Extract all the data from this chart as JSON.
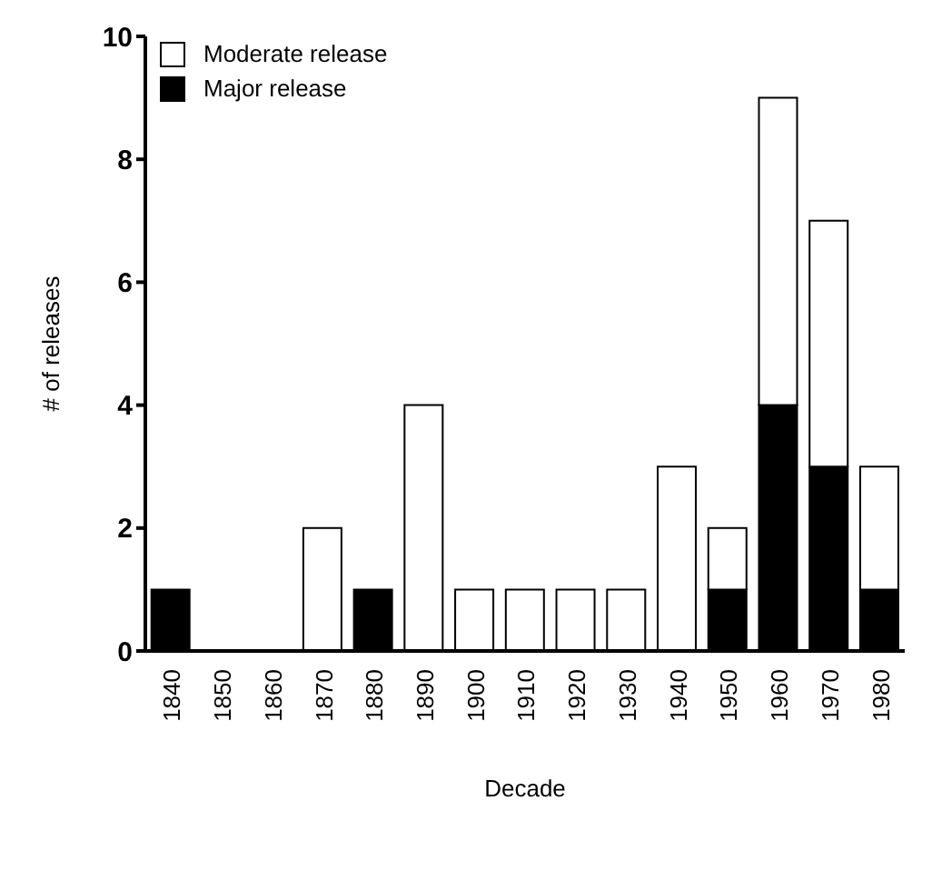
{
  "chart_data": {
    "type": "bar",
    "xlabel": "Decade",
    "ylabel": "# of releases",
    "categories": [
      "1840",
      "1850",
      "1860",
      "1870",
      "1880",
      "1890",
      "1900",
      "1910",
      "1920",
      "1930",
      "1940",
      "1950",
      "1960",
      "1970",
      "1980"
    ],
    "stacked": true,
    "series": [
      {
        "name": "Major release",
        "color": "#000000",
        "values": [
          1,
          0,
          0,
          0,
          1,
          0,
          0,
          0,
          0,
          0,
          0,
          1,
          4,
          3,
          1
        ]
      },
      {
        "name": "Moderate release",
        "color": "#ffffff",
        "values": [
          0,
          0,
          0,
          2,
          0,
          4,
          1,
          1,
          1,
          1,
          3,
          1,
          5,
          4,
          2
        ]
      }
    ],
    "ylim": [
      0,
      10
    ],
    "yticks": [
      0,
      2,
      4,
      6,
      8,
      10
    ],
    "grid": false,
    "legend": "top left"
  }
}
